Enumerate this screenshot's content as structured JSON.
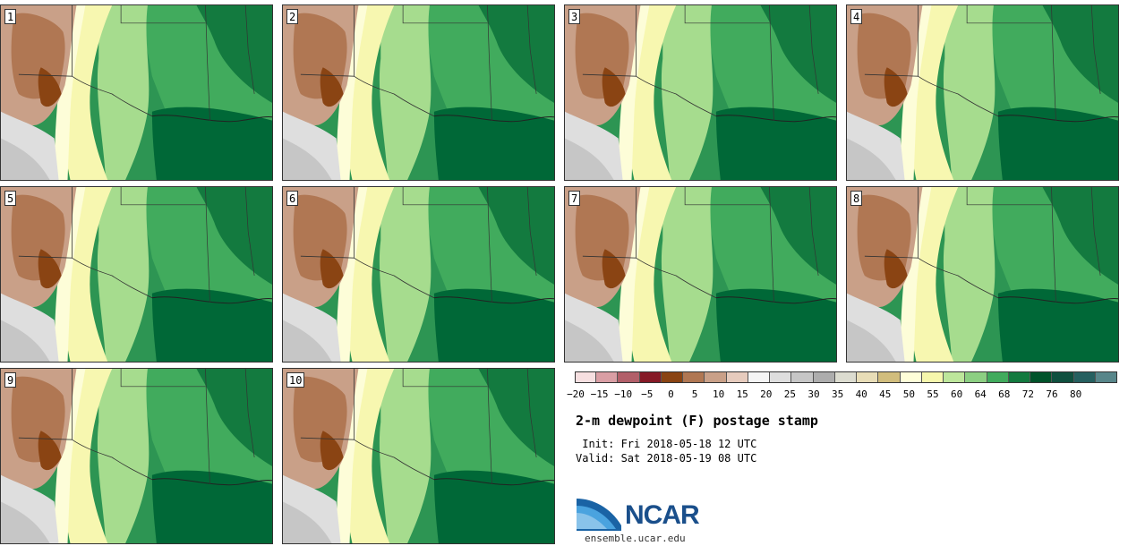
{
  "panels": [
    {
      "label": "1"
    },
    {
      "label": "2"
    },
    {
      "label": "3"
    },
    {
      "label": "4"
    },
    {
      "label": "5"
    },
    {
      "label": "6"
    },
    {
      "label": "7"
    },
    {
      "label": "8"
    },
    {
      "label": "9"
    },
    {
      "label": "10"
    }
  ],
  "colorbar": {
    "ticks": [
      "−20",
      "−15",
      "−10",
      "−5",
      "0",
      "5",
      "10",
      "15",
      "20",
      "25",
      "30",
      "35",
      "40",
      "45",
      "50",
      "55",
      "60",
      "64",
      "68",
      "72",
      "76",
      "80"
    ],
    "colors": [
      "#f6dfe0",
      "#d99ea4",
      "#b25f69",
      "#861a26",
      "#8a4413",
      "#b07753",
      "#c9a088",
      "#e6cbbd",
      "#f5f5f5",
      "#dedede",
      "#c6c6c6",
      "#adadad",
      "#dcdcd0",
      "#e8ddb7",
      "#d1bd7d",
      "#fefed8",
      "#f6f7ac",
      "#bde69b",
      "#8ccf82",
      "#41ab5d",
      "#137a3f",
      "#00532a",
      "#10503f",
      "#266060",
      "#58868a"
    ]
  },
  "title": "2-m dewpoint (F) postage stamp",
  "init": " Init: Fri 2018-05-18 12 UTC",
  "valid": "Valid: Sat 2018-05-19 08 UTC",
  "logo": {
    "text": "NCAR",
    "url": "ensemble.ucar.edu"
  }
}
